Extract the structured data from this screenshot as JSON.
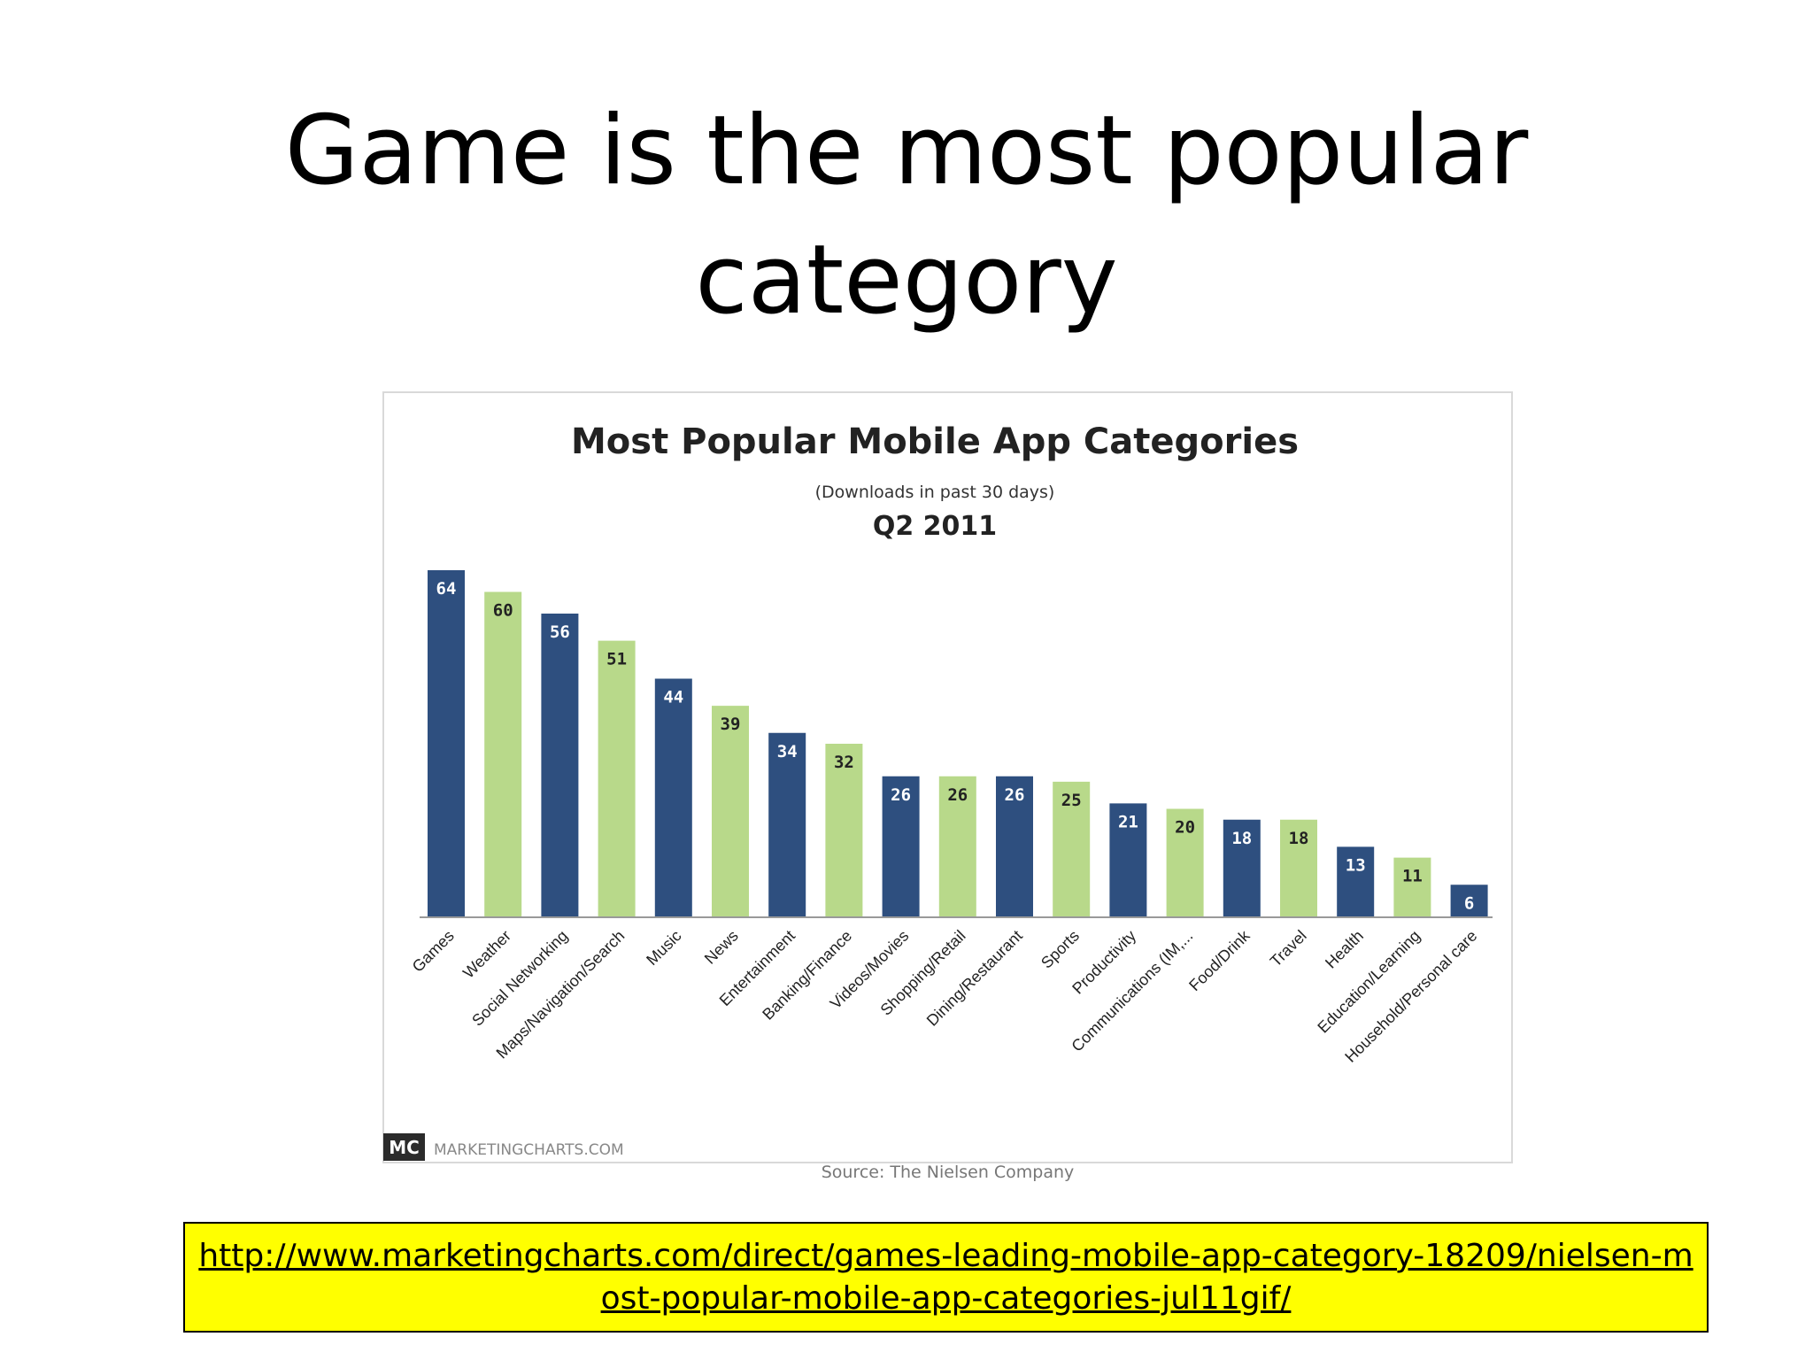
{
  "slide": {
    "title_line1": "Game is the most popular",
    "title_line2": "category",
    "link_text": "http://www.marketingcharts.com/direct/games-leading-mobile-app-category-18209/nielsen-most-popular-mobile-app-categories-jul11gif/"
  },
  "chart_data": {
    "type": "bar",
    "title": "Most Popular Mobile App Categories",
    "subtitle": "(Downloads in past 30 days)",
    "period": "Q2 2011",
    "categories": [
      "Games",
      "Weather",
      "Social Networking",
      "Maps/Navigation/Search",
      "Music",
      "News",
      "Entertainment",
      "Banking/Finance",
      "Videos/Movies",
      "Shopping/Retail",
      "Dining/Restaurant",
      "Sports",
      "Productivity",
      "Communications (IM,...",
      "Food/Drink",
      "Travel",
      "Health",
      "Education/Learning",
      "Household/Personal care"
    ],
    "values": [
      64,
      60,
      56,
      51,
      44,
      39,
      34,
      32,
      26,
      26,
      26,
      25,
      21,
      20,
      18,
      18,
      13,
      11,
      6
    ],
    "ylim": [
      0,
      64
    ],
    "grid": false,
    "legend": "none",
    "colors": {
      "dark": "#2e4f7f",
      "light": "#b8d98a",
      "dark_label": "#ffffff",
      "light_label": "#222222"
    },
    "logo_text": "MC",
    "brand": "MARKETINGCHARTS.COM",
    "source": "Source: The Nielsen Company"
  }
}
